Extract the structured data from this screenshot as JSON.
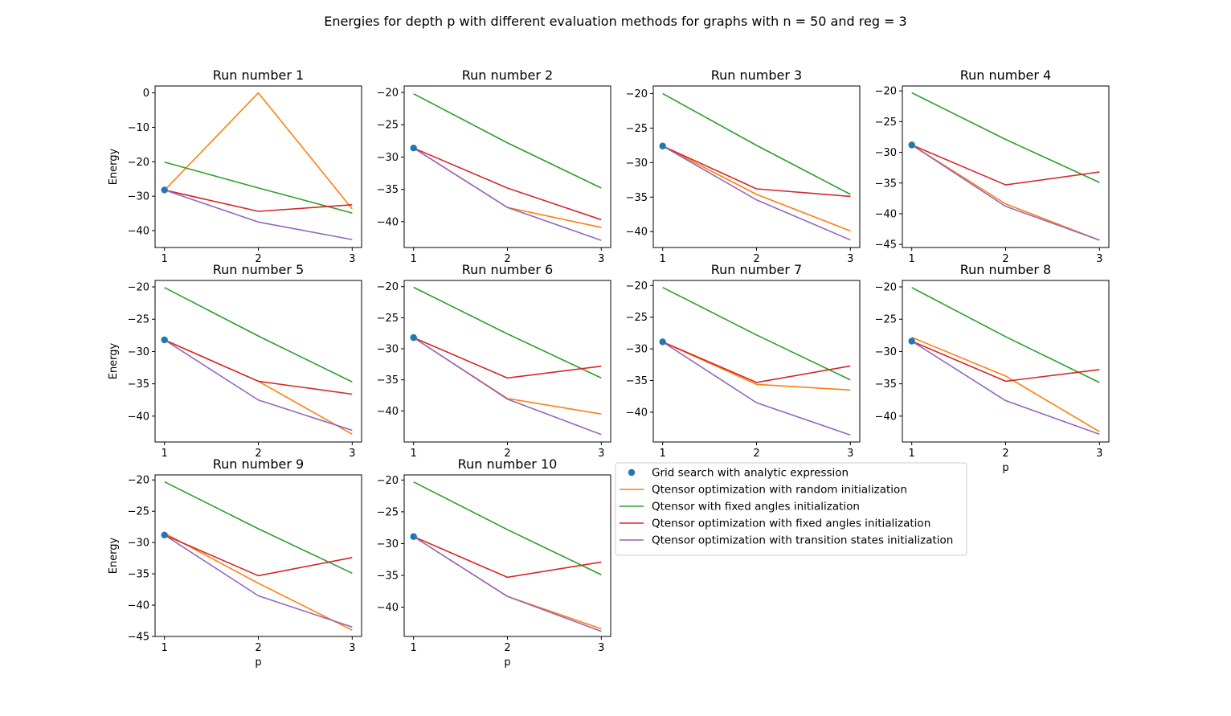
{
  "figure": {
    "title": "Energies for depth p with different evaluation methods for graphs with n = 50 and reg = 3"
  },
  "legend": {
    "placement": "right of bottom row",
    "entries": [
      {
        "label": "Grid search with analytic expression",
        "color": "#1f77b4",
        "marker": "circle"
      },
      {
        "label": "Qtensor optimization with random initialization",
        "color": "#ff7f0e",
        "marker": "line"
      },
      {
        "label": "Qtensor with fixed angles initialization",
        "color": "#2ca02c",
        "marker": "line"
      },
      {
        "label": "Qtensor optimization with fixed angles initialization",
        "color": "#d62728",
        "marker": "line"
      },
      {
        "label": "Qtensor optimization with transition states initialization",
        "color": "#9467bd",
        "marker": "line"
      }
    ]
  },
  "chart_data": [
    {
      "type": "line",
      "title": "Run number 1",
      "xlabel": "",
      "ylabel": "Energy",
      "x": [
        1,
        2,
        3
      ],
      "xticks": [
        1,
        2,
        3
      ],
      "ylim": [
        -44.9,
        2.0
      ],
      "yticks": [
        0,
        -10,
        -20,
        -30,
        -40
      ],
      "grid_search": {
        "x": 1,
        "y": -28.2
      },
      "series": [
        {
          "color": "#ff7f0e",
          "values": [
            -28.3,
            0.0,
            -33.7
          ]
        },
        {
          "color": "#2ca02c",
          "values": [
            -20.1,
            -27.6,
            -34.9
          ]
        },
        {
          "color": "#d62728",
          "values": [
            -28.2,
            -34.4,
            -32.5
          ]
        },
        {
          "color": "#9467bd",
          "values": [
            -28.2,
            -37.5,
            -42.6
          ]
        }
      ]
    },
    {
      "type": "line",
      "title": "Run number 2",
      "xlabel": "",
      "ylabel": "",
      "x": [
        1,
        2,
        3
      ],
      "xticks": [
        1,
        2,
        3
      ],
      "ylim": [
        -44.0,
        -19.0
      ],
      "yticks": [
        -20,
        -25,
        -30,
        -35,
        -40
      ],
      "grid_search": {
        "x": 1,
        "y": -28.6
      },
      "series": [
        {
          "color": "#ff7f0e",
          "values": [
            -28.6,
            -37.8,
            -40.9
          ]
        },
        {
          "color": "#2ca02c",
          "values": [
            -20.2,
            -27.8,
            -34.8
          ]
        },
        {
          "color": "#d62728",
          "values": [
            -28.6,
            -34.8,
            -39.7
          ]
        },
        {
          "color": "#9467bd",
          "values": [
            -28.6,
            -37.8,
            -42.9
          ]
        }
      ]
    },
    {
      "type": "line",
      "title": "Run number 3",
      "xlabel": "",
      "ylabel": "",
      "x": [
        1,
        2,
        3
      ],
      "xticks": [
        1,
        2,
        3
      ],
      "ylim": [
        -42.3,
        -18.9
      ],
      "yticks": [
        -20,
        -25,
        -30,
        -35,
        -40
      ],
      "grid_search": {
        "x": 1,
        "y": -27.6
      },
      "series": [
        {
          "color": "#ff7f0e",
          "values": [
            -27.6,
            -34.6,
            -39.9
          ]
        },
        {
          "color": "#2ca02c",
          "values": [
            -20.0,
            -27.5,
            -34.6
          ]
        },
        {
          "color": "#d62728",
          "values": [
            -27.6,
            -33.8,
            -34.9
          ]
        },
        {
          "color": "#9467bd",
          "values": [
            -27.6,
            -35.4,
            -41.2
          ]
        }
      ]
    },
    {
      "type": "line",
      "title": "Run number 4",
      "xlabel": "",
      "ylabel": "",
      "x": [
        1,
        2,
        3
      ],
      "xticks": [
        1,
        2,
        3
      ],
      "ylim": [
        -45.5,
        -19.2
      ],
      "yticks": [
        -20,
        -25,
        -30,
        -35,
        -40,
        -45
      ],
      "grid_search": {
        "x": 1,
        "y": -28.8
      },
      "series": [
        {
          "color": "#ff7f0e",
          "values": [
            -28.8,
            -38.4,
            -44.3
          ]
        },
        {
          "color": "#2ca02c",
          "values": [
            -20.3,
            -27.9,
            -34.9
          ]
        },
        {
          "color": "#d62728",
          "values": [
            -28.8,
            -35.3,
            -33.2
          ]
        },
        {
          "color": "#9467bd",
          "values": [
            -28.8,
            -38.8,
            -44.3
          ]
        }
      ]
    },
    {
      "type": "line",
      "title": "Run number 5",
      "xlabel": "",
      "ylabel": "Energy",
      "x": [
        1,
        2,
        3
      ],
      "xticks": [
        1,
        2,
        3
      ],
      "ylim": [
        -44.0,
        -19.0
      ],
      "yticks": [
        -20,
        -25,
        -30,
        -35,
        -40
      ],
      "grid_search": {
        "x": 1,
        "y": -28.2
      },
      "series": [
        {
          "color": "#ff7f0e",
          "values": [
            -28.2,
            -34.6,
            -42.8
          ]
        },
        {
          "color": "#2ca02c",
          "values": [
            -20.1,
            -27.6,
            -34.7
          ]
        },
        {
          "color": "#d62728",
          "values": [
            -28.2,
            -34.6,
            -36.6
          ]
        },
        {
          "color": "#9467bd",
          "values": [
            -28.2,
            -37.5,
            -42.2
          ]
        }
      ]
    },
    {
      "type": "line",
      "title": "Run number 6",
      "xlabel": "",
      "ylabel": "",
      "x": [
        1,
        2,
        3
      ],
      "xticks": [
        1,
        2,
        3
      ],
      "ylim": [
        -45.0,
        -19.0
      ],
      "yticks": [
        -20,
        -25,
        -30,
        -35,
        -40
      ],
      "grid_search": {
        "x": 1,
        "y": -28.2
      },
      "series": [
        {
          "color": "#ff7f0e",
          "values": [
            -28.2,
            -38.0,
            -40.5
          ]
        },
        {
          "color": "#2ca02c",
          "values": [
            -20.1,
            -27.6,
            -34.7
          ]
        },
        {
          "color": "#d62728",
          "values": [
            -28.2,
            -34.7,
            -32.8
          ]
        },
        {
          "color": "#9467bd",
          "values": [
            -28.2,
            -38.1,
            -43.8
          ]
        }
      ]
    },
    {
      "type": "line",
      "title": "Run number 7",
      "xlabel": "",
      "ylabel": "",
      "x": [
        1,
        2,
        3
      ],
      "xticks": [
        1,
        2,
        3
      ],
      "ylim": [
        -44.7,
        -19.2
      ],
      "yticks": [
        -20,
        -25,
        -30,
        -35,
        -40
      ],
      "grid_search": {
        "x": 1,
        "y": -28.9
      },
      "series": [
        {
          "color": "#ff7f0e",
          "values": [
            -28.9,
            -35.6,
            -36.5
          ]
        },
        {
          "color": "#2ca02c",
          "values": [
            -20.3,
            -27.8,
            -34.9
          ]
        },
        {
          "color": "#d62728",
          "values": [
            -28.9,
            -35.3,
            -32.7
          ]
        },
        {
          "color": "#9467bd",
          "values": [
            -28.9,
            -38.5,
            -43.6
          ]
        }
      ]
    },
    {
      "type": "line",
      "title": "Run number 8",
      "xlabel": "p",
      "ylabel": "",
      "x": [
        1,
        2,
        3
      ],
      "xticks": [
        1,
        2,
        3
      ],
      "ylim": [
        -44.0,
        -19.0
      ],
      "yticks": [
        -20,
        -25,
        -30,
        -35,
        -40
      ],
      "grid_search": {
        "x": 1,
        "y": -28.4
      },
      "series": [
        {
          "color": "#ff7f0e",
          "values": [
            -27.8,
            -33.8,
            -42.4
          ]
        },
        {
          "color": "#2ca02c",
          "values": [
            -20.1,
            -27.7,
            -34.8
          ]
        },
        {
          "color": "#d62728",
          "values": [
            -28.4,
            -34.6,
            -32.8
          ]
        },
        {
          "color": "#9467bd",
          "values": [
            -28.4,
            -37.6,
            -42.8
          ]
        }
      ]
    },
    {
      "type": "line",
      "title": "Run number 9",
      "xlabel": "p",
      "ylabel": "Energy",
      "x": [
        1,
        2,
        3
      ],
      "xticks": [
        1,
        2,
        3
      ],
      "ylim": [
        -45.0,
        -19.2
      ],
      "yticks": [
        -20,
        -25,
        -30,
        -35,
        -40,
        -45
      ],
      "grid_search": {
        "x": 1,
        "y": -28.8
      },
      "series": [
        {
          "color": "#ff7f0e",
          "values": [
            -28.5,
            -36.5,
            -44.0
          ]
        },
        {
          "color": "#2ca02c",
          "values": [
            -20.3,
            -27.8,
            -34.9
          ]
        },
        {
          "color": "#d62728",
          "values": [
            -28.8,
            -35.3,
            -32.4
          ]
        },
        {
          "color": "#9467bd",
          "values": [
            -28.8,
            -38.5,
            -43.5
          ]
        }
      ]
    },
    {
      "type": "line",
      "title": "Run number 10",
      "xlabel": "p",
      "ylabel": "",
      "x": [
        1,
        2,
        3
      ],
      "xticks": [
        1,
        2,
        3
      ],
      "ylim": [
        -44.6,
        -19.2
      ],
      "yticks": [
        -20,
        -25,
        -30,
        -35,
        -40
      ],
      "grid_search": {
        "x": 1,
        "y": -28.9
      },
      "series": [
        {
          "color": "#ff7f0e",
          "values": [
            -28.9,
            -38.3,
            -43.4
          ]
        },
        {
          "color": "#2ca02c",
          "values": [
            -20.3,
            -27.8,
            -34.9
          ]
        },
        {
          "color": "#d62728",
          "values": [
            -28.9,
            -35.3,
            -32.9
          ]
        },
        {
          "color": "#9467bd",
          "values": [
            -28.9,
            -38.3,
            -43.8
          ]
        }
      ]
    }
  ]
}
